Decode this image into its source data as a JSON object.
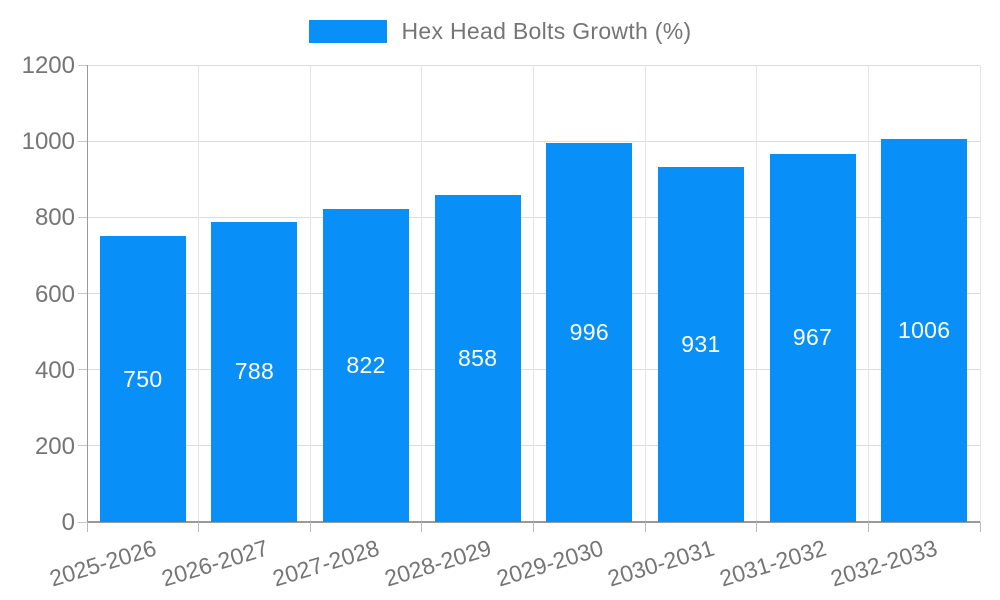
{
  "chart_data": {
    "type": "bar",
    "title": "Hex Head Bolts Growth (%)",
    "categories": [
      "2025-2026",
      "2026-2027",
      "2027-2028",
      "2028-2029",
      "2029-2030",
      "2030-2031",
      "2031-2032",
      "2032-2033"
    ],
    "values": [
      750,
      788,
      822,
      858,
      996,
      931,
      967,
      1006
    ],
    "xlabel": "",
    "ylabel": "",
    "ylim": [
      0,
      1200
    ],
    "yticks": [
      0,
      200,
      400,
      600,
      800,
      1000,
      1200
    ],
    "grid": "on",
    "legend_position": "top",
    "colors": {
      "bar": "#0990f8",
      "bar_value_label": "#ffffff",
      "axis_text": "#757575",
      "gridline": "#dcdcdc",
      "axis_line": "#9a9a9a"
    }
  }
}
